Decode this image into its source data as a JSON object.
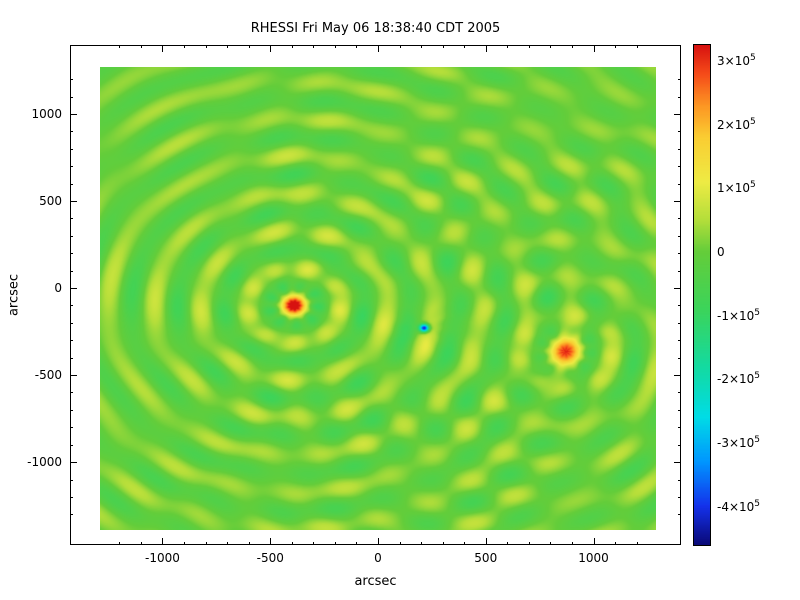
{
  "title": "RHESSI Fri May 06 18:38:40 CDT 2005",
  "axes": {
    "xlabel": "arcsec",
    "ylabel": "arcsec",
    "xlim": [
      -1290,
      1290
    ],
    "ylim": [
      -1390,
      1270
    ],
    "xticks": [
      {
        "value": -1000,
        "label": "-1000"
      },
      {
        "value": -500,
        "label": "-500"
      },
      {
        "value": 0,
        "label": "0"
      },
      {
        "value": 500,
        "label": "500"
      },
      {
        "value": 1000,
        "label": "1000"
      }
    ],
    "yticks": [
      {
        "value": -1000,
        "label": "-1000"
      },
      {
        "value": -500,
        "label": "-500"
      },
      {
        "value": 0,
        "label": "0"
      },
      {
        "value": 500,
        "label": "500"
      },
      {
        "value": 1000,
        "label": "1000"
      }
    ],
    "minor_tick_step": 100
  },
  "colorbar": {
    "min": -460000,
    "max": 325000,
    "ticks": [
      {
        "value": 300000,
        "mantissa": "3×10",
        "exponent": "5"
      },
      {
        "value": 200000,
        "mantissa": "2×10",
        "exponent": "5"
      },
      {
        "value": 100000,
        "mantissa": "1×10",
        "exponent": "5"
      },
      {
        "value": 0,
        "mantissa": "0",
        "exponent": ""
      },
      {
        "value": -100000,
        "mantissa": "-1×10",
        "exponent": "5"
      },
      {
        "value": -200000,
        "mantissa": "-2×10",
        "exponent": "5"
      },
      {
        "value": -300000,
        "mantissa": "-3×10",
        "exponent": "5"
      },
      {
        "value": -400000,
        "mantissa": "-4×10",
        "exponent": "5"
      }
    ]
  },
  "chart_data": {
    "type": "heatmap",
    "title": "RHESSI Fri May 06 18:38:40 CDT 2005",
    "xlabel": "arcsec",
    "ylabel": "arcsec",
    "xlim": [
      -1290,
      1290
    ],
    "ylim": [
      -1390,
      1270
    ],
    "value_range": [
      -460000,
      325000
    ],
    "background_value": 0,
    "units": "arcsec",
    "sources": [
      {
        "name": "primary-source",
        "x": -390,
        "y": -100,
        "peak": 320000,
        "core_sigma": 40,
        "ring_amplitude": 80000,
        "ring_wavelength": 215,
        "ring_decay": 2200,
        "azimuthal_lobes": 9
      },
      {
        "name": "negative-source",
        "x": 215,
        "y": -230,
        "peak": -460000,
        "core_sigma": 16,
        "ring_amplitude": -15000,
        "ring_wavelength": 215,
        "ring_decay": 600,
        "azimuthal_lobes": 9
      },
      {
        "name": "secondary-source",
        "x": 870,
        "y": -365,
        "peak": 230000,
        "core_sigma": 60,
        "ring_amplitude": 52000,
        "ring_wavelength": 215,
        "ring_decay": 1800,
        "azimuthal_lobes": 9
      }
    ],
    "colormap_stops": [
      [
        -460000,
        [
          10,
          10,
          120
        ]
      ],
      [
        -400000,
        [
          20,
          50,
          235
        ]
      ],
      [
        -330000,
        [
          0,
          150,
          255
        ]
      ],
      [
        -260000,
        [
          0,
          220,
          230
        ]
      ],
      [
        -180000,
        [
          20,
          218,
          160
        ]
      ],
      [
        -90000,
        [
          60,
          212,
          90
        ]
      ],
      [
        0,
        [
          100,
          205,
          58
        ]
      ],
      [
        50000,
        [
          180,
          222,
          58
        ]
      ],
      [
        110000,
        [
          238,
          235,
          68
        ]
      ],
      [
        180000,
        [
          250,
          205,
          50
        ]
      ],
      [
        230000,
        [
          252,
          150,
          35
        ]
      ],
      [
        280000,
        [
          245,
          75,
          25
        ]
      ],
      [
        325000,
        [
          215,
          18,
          16
        ]
      ]
    ]
  }
}
